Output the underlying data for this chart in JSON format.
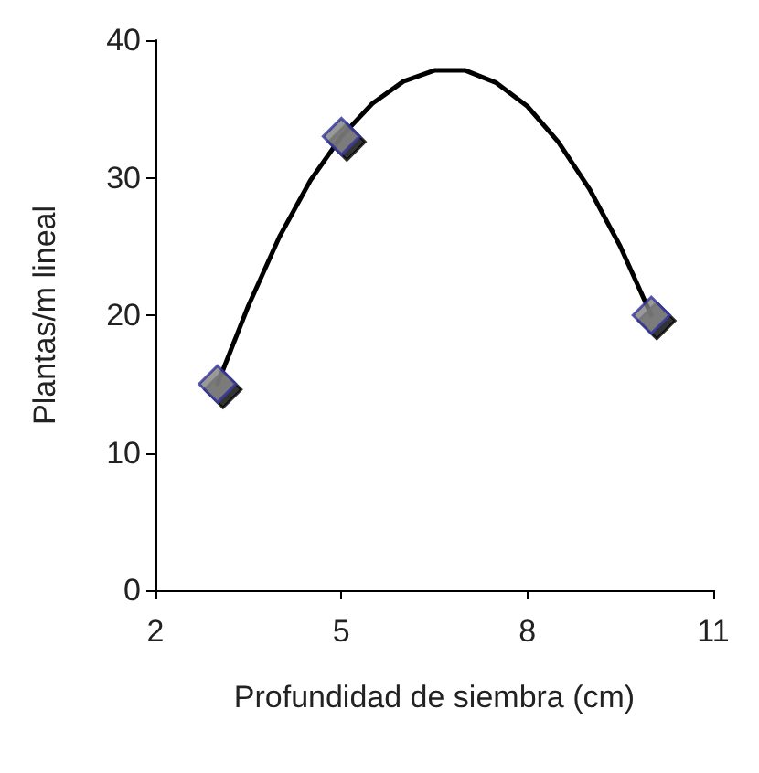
{
  "chart_data": {
    "type": "scatter",
    "xlabel": "Profundidad de siembra (cm)",
    "ylabel": "Plantas/m lineal",
    "xlim": [
      2,
      11
    ],
    "xticks": [
      2,
      5,
      8,
      11
    ],
    "ylim": [
      0,
      40
    ],
    "yticks": [
      0,
      10,
      20,
      30,
      40
    ],
    "grid": false,
    "series": [
      {
        "type": "line",
        "color": "#000000",
        "marker": "none",
        "x": [
          3,
          3.5,
          4,
          4.5,
          5,
          5.5,
          6,
          6.5,
          7,
          7.5,
          8,
          8.5,
          9,
          9.5,
          10
        ],
        "values": [
          15,
          20.7,
          25.7,
          29.8,
          33,
          35.4,
          37,
          37.8,
          37.8,
          36.9,
          35.2,
          32.6,
          29.2,
          25,
          20
        ]
      },
      {
        "color": "#808080",
        "marker": "diamond",
        "x": [
          3,
          5,
          10
        ],
        "values": [
          15,
          33,
          20
        ]
      }
    ]
  }
}
